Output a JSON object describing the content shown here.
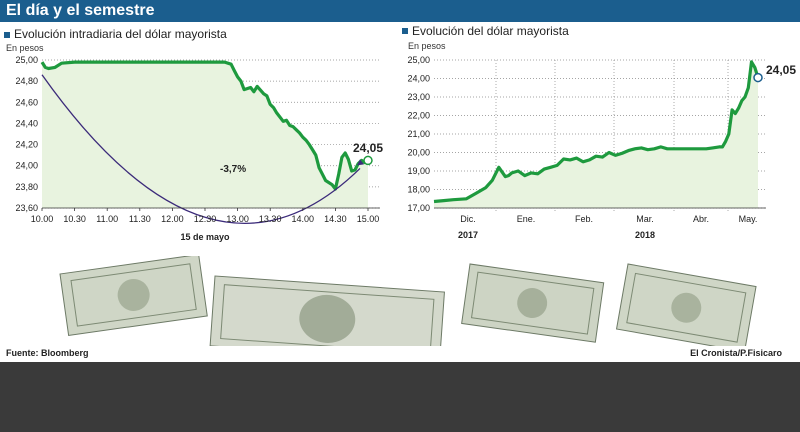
{
  "header": {
    "title": "El día y el semestre"
  },
  "footer": {
    "source": "Fuente: Bloomberg",
    "credit": "El Cronista/P.Fisicaro"
  },
  "colors": {
    "header_bg": "#1b5e8e",
    "line": "#1e9a3e",
    "area": "#e8f3df",
    "arrow": "#3b2a7a",
    "marker": "#1b5e8e"
  },
  "chart_data": [
    {
      "type": "line",
      "title": "Evolución intradiaria del dólar mayorista",
      "unit_label": "En pesos",
      "xlabel": "15 de mayo",
      "x_ticks": [
        "10.00",
        "10.30",
        "11.00",
        "11.30",
        "12.00",
        "12.30",
        "13.00",
        "13.30",
        "14.00",
        "14.30",
        "15.00"
      ],
      "y_ticks": [
        "25,00",
        "24,80",
        "24,60",
        "24,40",
        "24,20",
        "24,00",
        "23,80",
        "23,60"
      ],
      "ylim": [
        23.6,
        25.0
      ],
      "xlim_hours": [
        10.0,
        15.0
      ],
      "series": [
        {
          "x": [
            10.0,
            10.05,
            10.1,
            10.2,
            10.3,
            10.5,
            11.0,
            11.5,
            12.0,
            12.5,
            12.8,
            12.9,
            12.95,
            13.0,
            13.05,
            13.1,
            13.2,
            13.25,
            13.3,
            13.4,
            13.45,
            13.5,
            13.55,
            13.6,
            13.7,
            13.75,
            13.8,
            13.85,
            13.9,
            13.95,
            14.0,
            14.05,
            14.1,
            14.15,
            14.2,
            14.25,
            14.3,
            14.35,
            14.4,
            14.45,
            14.5,
            14.55,
            14.6,
            14.65,
            14.7,
            14.75,
            14.8,
            14.85,
            14.9,
            14.95,
            15.0
          ],
          "y": [
            24.98,
            24.93,
            24.92,
            24.93,
            24.97,
            24.98,
            24.98,
            24.98,
            24.98,
            24.98,
            24.98,
            24.96,
            24.9,
            24.84,
            24.8,
            24.72,
            24.74,
            24.7,
            24.75,
            24.68,
            24.66,
            24.58,
            24.55,
            24.5,
            24.42,
            24.43,
            24.38,
            24.37,
            24.34,
            24.31,
            24.27,
            24.24,
            24.2,
            24.15,
            24.1,
            23.98,
            23.92,
            23.86,
            23.84,
            23.82,
            23.78,
            23.92,
            24.08,
            24.12,
            24.06,
            23.95,
            23.96,
            24.02,
            24.05,
            24.03,
            24.05
          ]
        }
      ],
      "last_value_label": "24,05",
      "annotation": "-3,7%"
    },
    {
      "type": "line",
      "title": "Evolución del dólar mayorista",
      "unit_label": "En pesos",
      "x_ticks": [
        "Dic.",
        "Ene.",
        "Feb.",
        "Mar.",
        "Abr.",
        "May."
      ],
      "year_labels": [
        "2017",
        "2018"
      ],
      "y_ticks": [
        "25,00",
        "24,00",
        "23,00",
        "22,00",
        "21,00",
        "20,00",
        "19,00",
        "18,00",
        "17,00"
      ],
      "ylim": [
        17.0,
        25.0
      ],
      "series": [
        {
          "x": [
            0,
            0.03,
            0.06,
            0.1,
            0.13,
            0.16,
            0.18,
            0.2,
            0.22,
            0.23,
            0.24,
            0.26,
            0.28,
            0.3,
            0.32,
            0.34,
            0.36,
            0.38,
            0.4,
            0.42,
            0.44,
            0.46,
            0.48,
            0.5,
            0.52,
            0.54,
            0.56,
            0.58,
            0.6,
            0.62,
            0.64,
            0.66,
            0.68,
            0.7,
            0.72,
            0.74,
            0.76,
            0.78,
            0.8,
            0.82,
            0.84,
            0.86,
            0.88,
            0.89,
            0.9,
            0.91,
            0.92,
            0.93,
            0.94,
            0.95,
            0.96,
            0.97,
            0.98,
            0.99,
            1.0
          ],
          "y": [
            17.35,
            17.4,
            17.45,
            17.5,
            17.8,
            18.1,
            18.5,
            19.2,
            18.7,
            18.75,
            18.9,
            19.0,
            18.75,
            18.9,
            18.85,
            19.1,
            19.2,
            19.3,
            19.65,
            19.6,
            19.7,
            19.5,
            19.6,
            19.8,
            19.75,
            20.0,
            19.85,
            19.95,
            20.1,
            20.2,
            20.25,
            20.15,
            20.2,
            20.3,
            20.2,
            20.2,
            20.2,
            20.2,
            20.2,
            20.2,
            20.2,
            20.25,
            20.3,
            20.3,
            20.6,
            21.0,
            22.3,
            22.1,
            22.4,
            22.8,
            23.0,
            23.5,
            24.9,
            24.6,
            24.05
          ]
        }
      ],
      "last_value_label": "24,05"
    }
  ]
}
